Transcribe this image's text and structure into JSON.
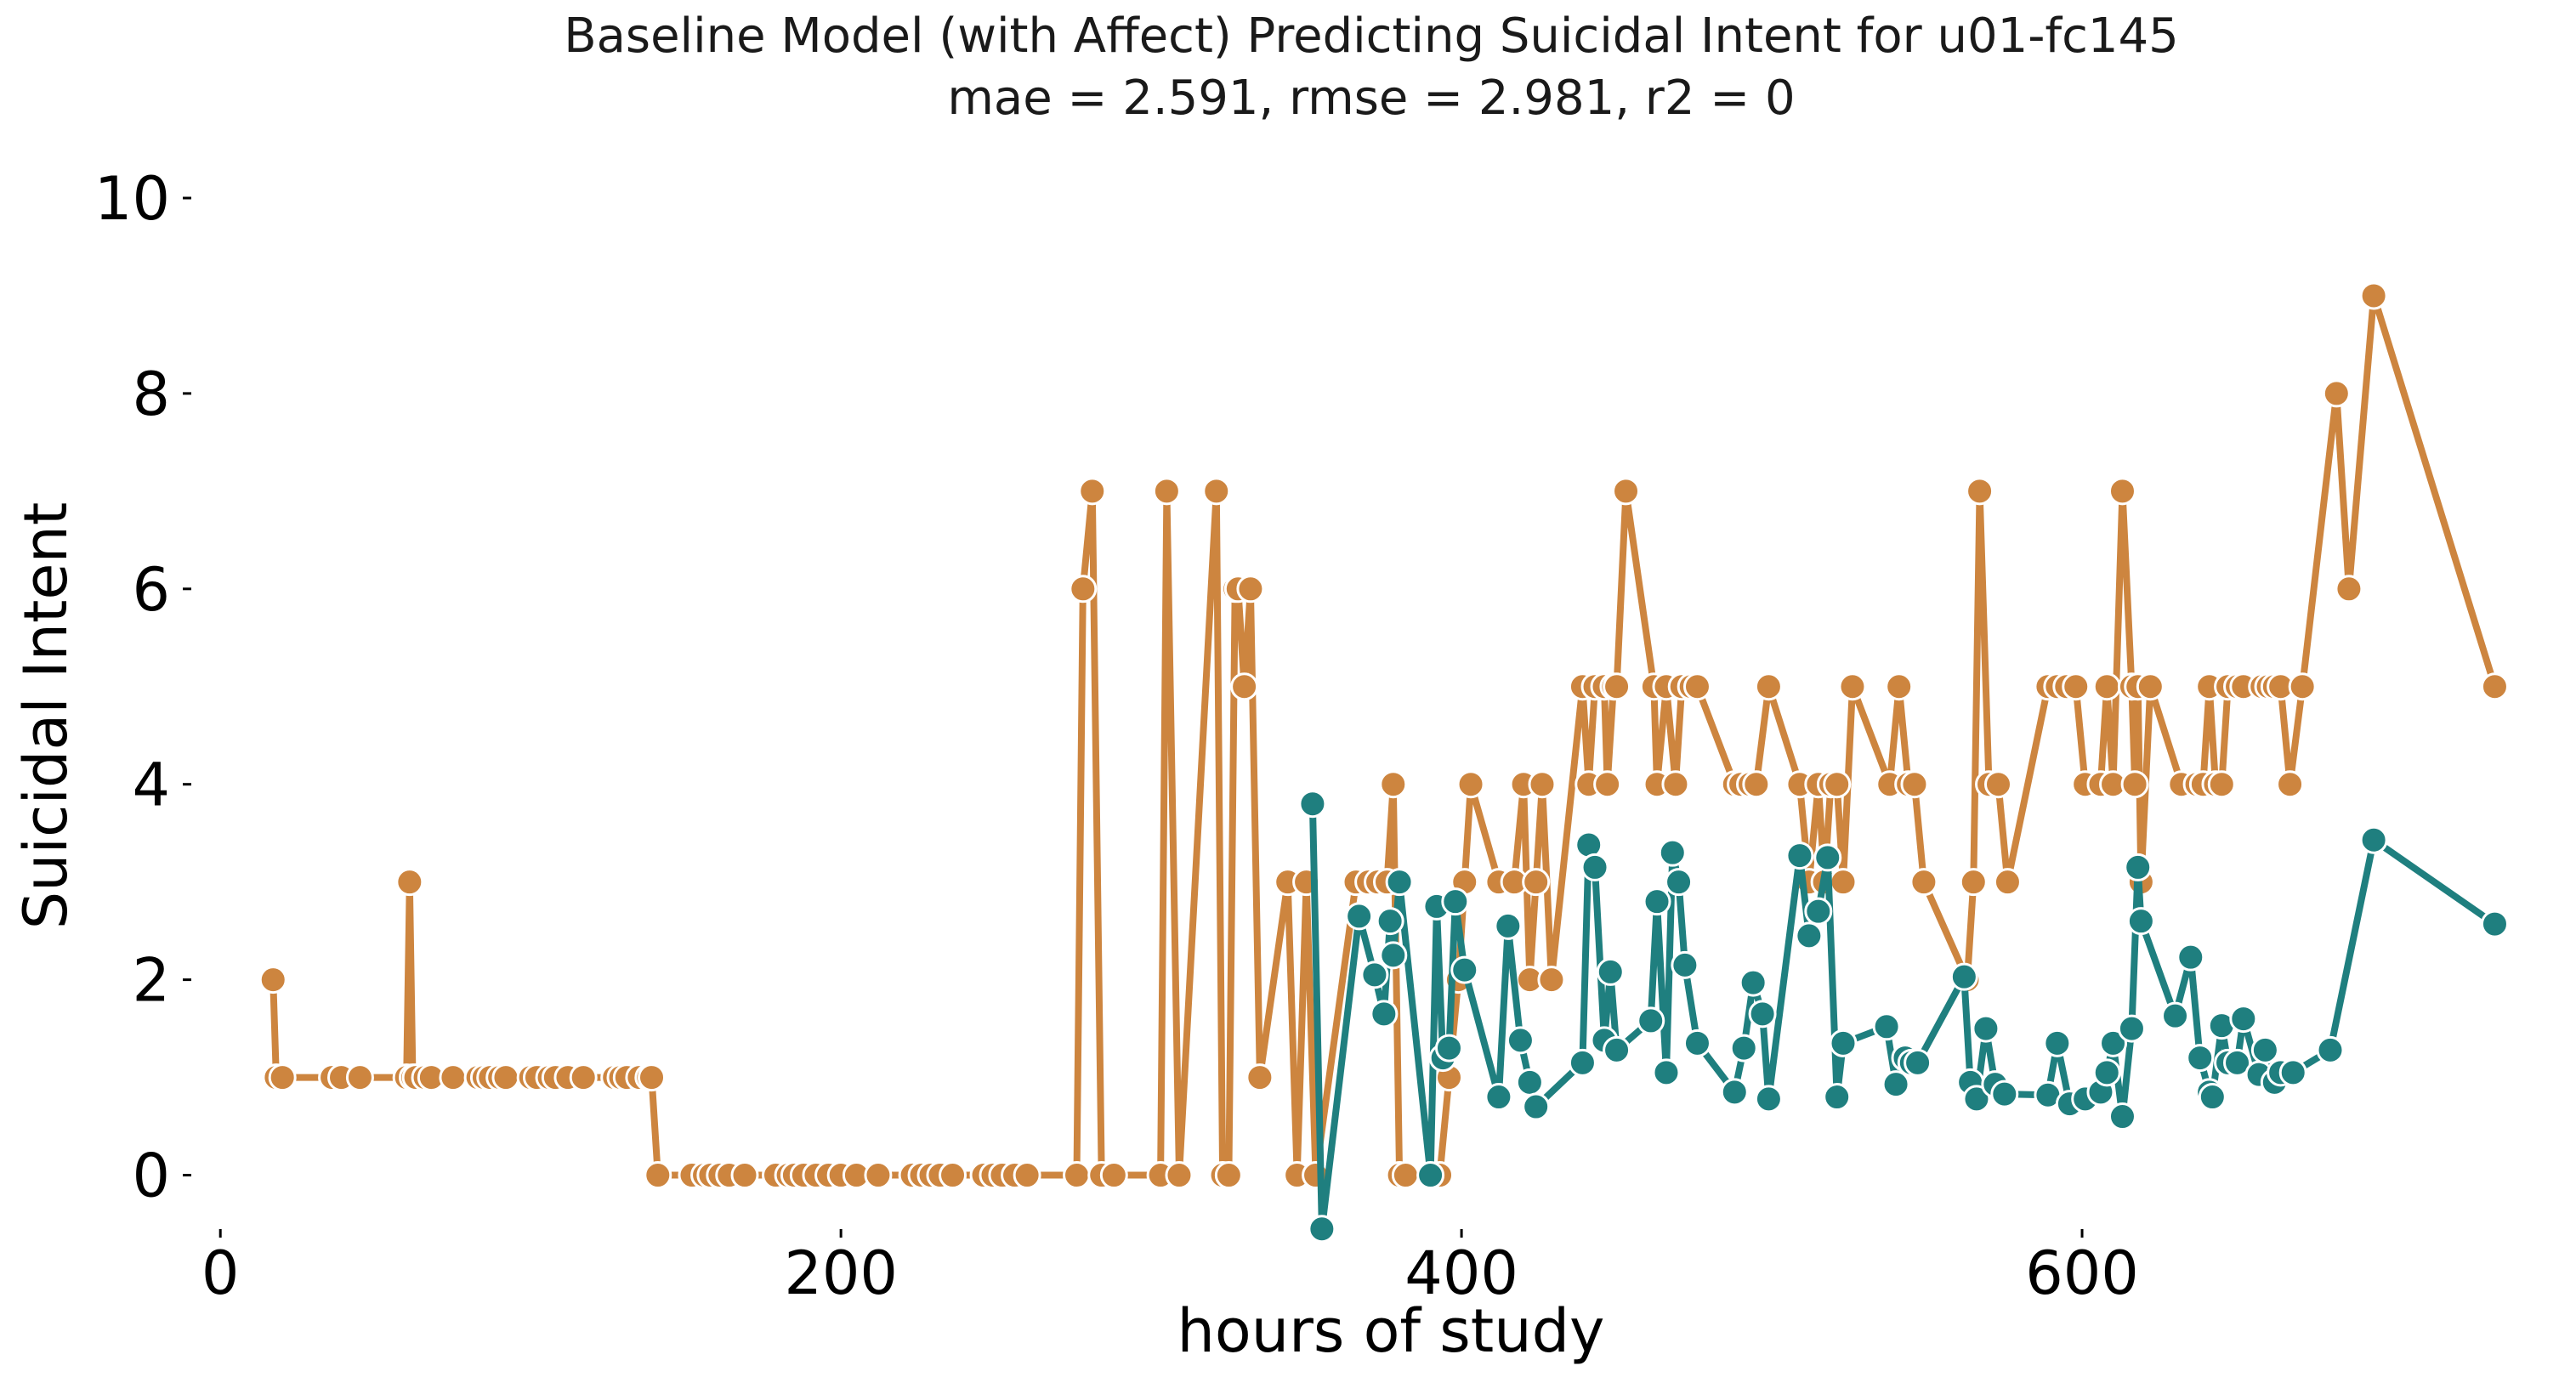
{
  "chart_data": {
    "type": "line",
    "title": "Baseline Model (with Affect) Predicting Suicidal Intent for u01-fc145",
    "subtitle": "mae = 2.591, rmse = 2.981, r2 = 0",
    "xlabel": "hours of study",
    "ylabel": "Suicidal Intent",
    "xlim": [
      -8,
      740
    ],
    "ylim": [
      -0.5,
      10.2
    ],
    "xticks": [
      0,
      200,
      400,
      600
    ],
    "yticks": [
      0,
      2,
      4,
      6,
      8,
      10
    ],
    "grid": false,
    "legend": "none",
    "series": [
      {
        "color": "#CD853F",
        "x": [
          17,
          18,
          20,
          36,
          39,
          45,
          60,
          61,
          62,
          63,
          66,
          68,
          75,
          83,
          85,
          87,
          90,
          92,
          100,
          102,
          106,
          108,
          112,
          117,
          127,
          129,
          131,
          135,
          138,
          139,
          141,
          152,
          156,
          158,
          161,
          164,
          169,
          179,
          183,
          185,
          188,
          192,
          196,
          200,
          205,
          212,
          223,
          226,
          229,
          232,
          236,
          246,
          249,
          252,
          256,
          260,
          276,
          278,
          281,
          284,
          288,
          303,
          305,
          309,
          321,
          323,
          325,
          327,
          328,
          330,
          332,
          335,
          344,
          347,
          350,
          353,
          366,
          370,
          373,
          376,
          378,
          380,
          382,
          393,
          396,
          399,
          401,
          403,
          412,
          417,
          420,
          422,
          424,
          426,
          429,
          439,
          441,
          443,
          446,
          447,
          449,
          450,
          453,
          462,
          463,
          466,
          469,
          471,
          474,
          476,
          488,
          490,
          493,
          495,
          499,
          509,
          512,
          515,
          517,
          519,
          521,
          523,
          526,
          538,
          541,
          544,
          546,
          549,
          563,
          565,
          567,
          570,
          573,
          576,
          589,
          592,
          595,
          598,
          601,
          606,
          608,
          610,
          613,
          616,
          617,
          618,
          619,
          622,
          632,
          637,
          639,
          641,
          643,
          645,
          647,
          650,
          652,
          658,
          660,
          662,
          664,
          667,
          671,
          682,
          686,
          694,
          733
        ],
        "y": [
          2,
          1,
          1,
          1,
          1,
          1,
          1,
          3,
          1,
          1,
          1,
          1,
          1,
          1,
          1,
          1,
          1,
          1,
          1,
          1,
          1,
          1,
          1,
          1,
          1,
          1,
          1,
          1,
          1,
          1,
          0,
          0,
          0,
          0,
          0,
          0,
          0,
          0,
          0,
          0,
          0,
          0,
          0,
          0,
          0,
          0,
          0,
          0,
          0,
          0,
          0,
          0,
          0,
          0,
          0,
          0,
          0,
          6,
          7,
          0,
          0,
          0,
          7,
          0,
          7,
          0,
          0,
          6,
          6,
          5,
          6,
          1,
          3,
          0,
          3,
          0,
          3,
          3,
          3,
          3,
          4,
          0,
          0,
          0,
          1,
          2,
          3,
          4,
          3,
          3,
          4,
          2,
          3,
          4,
          2,
          5,
          4,
          5,
          5,
          4,
          5,
          5,
          7,
          5,
          4,
          5,
          4,
          5,
          5,
          5,
          4,
          4,
          4,
          4,
          5,
          4,
          3,
          4,
          3,
          4,
          4,
          3,
          5,
          4,
          5,
          4,
          4,
          3,
          2,
          3,
          7,
          4,
          4,
          3,
          5,
          5,
          5,
          5,
          4,
          4,
          5,
          4,
          7,
          5,
          4,
          5,
          3,
          5,
          4,
          4,
          4,
          5,
          4,
          4,
          5,
          5,
          5,
          5,
          5,
          5,
          5,
          4,
          5,
          8,
          6,
          9,
          5
        ]
      },
      {
        "color": "#1F7F7F",
        "x": [
          352,
          355,
          367,
          372,
          375,
          377,
          378,
          380,
          390,
          392,
          394,
          396,
          398,
          401,
          412,
          415,
          419,
          422,
          424,
          439,
          441,
          443,
          446,
          448,
          450,
          461,
          463,
          466,
          468,
          470,
          472,
          476,
          488,
          491,
          494,
          497,
          499,
          509,
          512,
          515,
          518,
          521,
          523,
          537,
          540,
          543,
          545,
          547,
          562,
          564,
          566,
          569,
          572,
          575,
          589,
          592,
          596,
          601,
          606,
          608,
          610,
          613,
          616,
          618,
          619,
          630,
          635,
          638,
          641,
          642,
          645,
          647,
          650,
          652,
          657,
          659,
          662,
          664,
          668,
          680,
          694,
          733
        ],
        "y": [
          3.8,
          -0.55,
          2.65,
          2.05,
          1.65,
          2.6,
          2.25,
          3.0,
          0.0,
          2.75,
          1.2,
          1.3,
          2.8,
          2.1,
          0.8,
          2.55,
          1.38,
          0.95,
          0.7,
          1.15,
          3.38,
          3.15,
          1.38,
          2.08,
          1.28,
          1.58,
          2.8,
          1.05,
          3.3,
          3.0,
          2.15,
          1.35,
          0.85,
          1.3,
          1.97,
          1.65,
          0.78,
          3.27,
          2.45,
          2.7,
          3.25,
          0.8,
          1.35,
          1.52,
          0.93,
          1.2,
          1.15,
          1.15,
          2.03,
          0.95,
          0.78,
          1.5,
          0.93,
          0.83,
          0.82,
          1.35,
          0.73,
          0.78,
          0.85,
          1.05,
          1.35,
          0.6,
          1.5,
          3.15,
          2.6,
          1.63,
          2.23,
          1.2,
          0.85,
          0.8,
          1.53,
          1.15,
          1.15,
          1.6,
          1.03,
          1.28,
          0.95,
          1.05,
          1.05,
          1.28,
          3.43,
          2.57
        ]
      }
    ]
  }
}
